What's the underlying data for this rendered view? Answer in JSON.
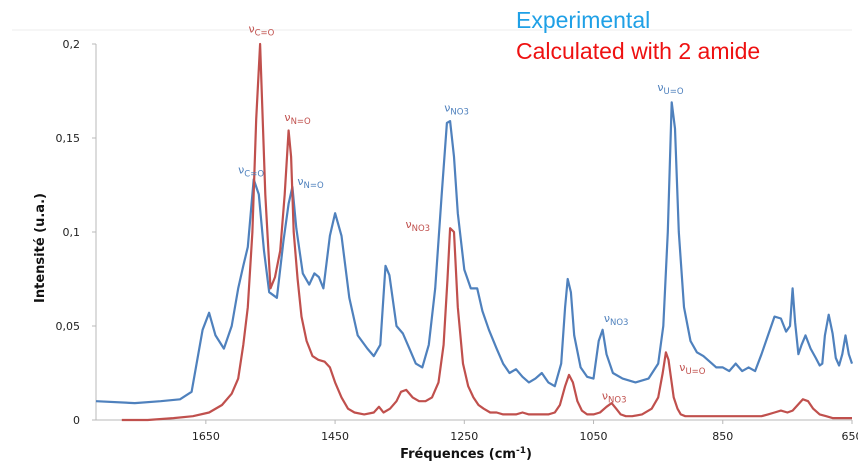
{
  "chart_data": {
    "type": "line",
    "title": "",
    "xlabel_main": "Fréquences (cm",
    "xlabel_sup": "-1",
    "xlabel_end": ")",
    "ylabel": "Intensité (u.a.)",
    "x_reversed": true,
    "xlim": [
      1820,
      650
    ],
    "ylim": [
      0,
      0.2
    ],
    "grid": false,
    "legend_position": "top-right",
    "x_ticks": [
      1650,
      1450,
      1250,
      1050,
      850,
      650
    ],
    "x_tick_labels": [
      "1650",
      "1450",
      "1250",
      "1050",
      "850",
      "650"
    ],
    "y_ticks": [
      0,
      0.05,
      0.1,
      0.15,
      0.2
    ],
    "y_tick_labels": [
      "0",
      "0,05",
      "0,1",
      "0,15",
      "0,2"
    ],
    "series": [
      {
        "name": "Experimental",
        "color": "#4f81bd",
        "x": [
          1820,
          1760,
          1720,
          1690,
          1672,
          1655,
          1645,
          1635,
          1622,
          1610,
          1600,
          1592,
          1585,
          1576,
          1568,
          1560,
          1552,
          1540,
          1530,
          1522,
          1516,
          1510,
          1500,
          1490,
          1482,
          1475,
          1468,
          1458,
          1450,
          1440,
          1428,
          1415,
          1400,
          1390,
          1380,
          1372,
          1366,
          1355,
          1345,
          1335,
          1325,
          1315,
          1305,
          1295,
          1285,
          1277,
          1272,
          1266,
          1260,
          1250,
          1240,
          1230,
          1222,
          1212,
          1200,
          1190,
          1180,
          1170,
          1160,
          1150,
          1140,
          1130,
          1120,
          1110,
          1100,
          1094,
          1090,
          1085,
          1080,
          1070,
          1060,
          1050,
          1042,
          1036,
          1030,
          1020,
          1005,
          985,
          965,
          950,
          942,
          935,
          929,
          924,
          918,
          910,
          900,
          890,
          880,
          870,
          860,
          850,
          840,
          830,
          820,
          810,
          800,
          790,
          780,
          770,
          760,
          752,
          746,
          742,
          738,
          733,
          728,
          722,
          714,
          706,
          700,
          696,
          692,
          686,
          680,
          675,
          670,
          665,
          660,
          655,
          650
        ],
        "y": [
          0.01,
          0.009,
          0.01,
          0.011,
          0.015,
          0.048,
          0.057,
          0.045,
          0.038,
          0.05,
          0.07,
          0.082,
          0.092,
          0.128,
          0.12,
          0.09,
          0.068,
          0.065,
          0.095,
          0.115,
          0.124,
          0.102,
          0.078,
          0.072,
          0.078,
          0.076,
          0.07,
          0.098,
          0.11,
          0.098,
          0.065,
          0.045,
          0.038,
          0.034,
          0.04,
          0.082,
          0.077,
          0.05,
          0.046,
          0.038,
          0.03,
          0.028,
          0.04,
          0.07,
          0.12,
          0.158,
          0.159,
          0.14,
          0.11,
          0.08,
          0.07,
          0.07,
          0.058,
          0.048,
          0.038,
          0.03,
          0.025,
          0.027,
          0.023,
          0.02,
          0.022,
          0.025,
          0.02,
          0.018,
          0.03,
          0.06,
          0.075,
          0.068,
          0.045,
          0.028,
          0.023,
          0.022,
          0.042,
          0.048,
          0.035,
          0.025,
          0.022,
          0.02,
          0.022,
          0.03,
          0.05,
          0.1,
          0.169,
          0.155,
          0.1,
          0.06,
          0.042,
          0.036,
          0.034,
          0.031,
          0.028,
          0.028,
          0.026,
          0.03,
          0.026,
          0.028,
          0.026,
          0.035,
          0.045,
          0.055,
          0.054,
          0.047,
          0.05,
          0.07,
          0.052,
          0.035,
          0.04,
          0.045,
          0.038,
          0.033,
          0.029,
          0.03,
          0.045,
          0.056,
          0.046,
          0.033,
          0.029,
          0.035,
          0.045,
          0.035,
          0.03
        ]
      },
      {
        "name": "Calculated with 2 amide",
        "color": "#c0504d",
        "x": [
          1780,
          1740,
          1700,
          1670,
          1645,
          1625,
          1610,
          1600,
          1592,
          1585,
          1578,
          1572,
          1566,
          1558,
          1550,
          1543,
          1535,
          1528,
          1522,
          1518,
          1514,
          1508,
          1502,
          1494,
          1485,
          1476,
          1466,
          1458,
          1450,
          1440,
          1430,
          1420,
          1405,
          1390,
          1382,
          1375,
          1365,
          1355,
          1348,
          1340,
          1330,
          1320,
          1310,
          1300,
          1290,
          1282,
          1276,
          1272,
          1266,
          1260,
          1252,
          1244,
          1236,
          1228,
          1220,
          1210,
          1200,
          1190,
          1180,
          1170,
          1160,
          1150,
          1140,
          1130,
          1120,
          1110,
          1102,
          1094,
          1088,
          1082,
          1075,
          1068,
          1060,
          1050,
          1040,
          1030,
          1022,
          1015,
          1008,
          1000,
          990,
          975,
          960,
          950,
          943,
          938,
          934,
          930,
          926,
          920,
          915,
          908,
          900,
          890,
          880,
          870,
          860,
          850,
          840,
          830,
          820,
          810,
          800,
          790,
          780,
          770,
          760,
          750,
          742,
          734,
          726,
          718,
          710,
          700,
          690,
          680,
          670,
          660,
          650
        ],
        "y": [
          0,
          0,
          0.001,
          0.002,
          0.004,
          0.008,
          0.014,
          0.022,
          0.04,
          0.06,
          0.1,
          0.16,
          0.2,
          0.12,
          0.07,
          0.076,
          0.09,
          0.12,
          0.154,
          0.14,
          0.1,
          0.075,
          0.055,
          0.042,
          0.034,
          0.032,
          0.031,
          0.028,
          0.02,
          0.012,
          0.006,
          0.004,
          0.003,
          0.004,
          0.007,
          0.004,
          0.006,
          0.01,
          0.015,
          0.016,
          0.012,
          0.01,
          0.01,
          0.012,
          0.02,
          0.04,
          0.075,
          0.102,
          0.1,
          0.06,
          0.03,
          0.018,
          0.012,
          0.008,
          0.006,
          0.004,
          0.004,
          0.003,
          0.003,
          0.003,
          0.004,
          0.003,
          0.003,
          0.003,
          0.003,
          0.004,
          0.008,
          0.018,
          0.024,
          0.02,
          0.01,
          0.005,
          0.003,
          0.003,
          0.004,
          0.007,
          0.009,
          0.006,
          0.003,
          0.002,
          0.002,
          0.003,
          0.006,
          0.012,
          0.025,
          0.036,
          0.032,
          0.022,
          0.012,
          0.006,
          0.003,
          0.002,
          0.002,
          0.002,
          0.002,
          0.002,
          0.002,
          0.002,
          0.002,
          0.002,
          0.002,
          0.002,
          0.002,
          0.002,
          0.003,
          0.004,
          0.005,
          0.004,
          0.005,
          0.008,
          0.011,
          0.01,
          0.006,
          0.003,
          0.002,
          0.001,
          0.001,
          0.001,
          0.001
        ]
      }
    ],
    "annotations": [
      {
        "base": "ν",
        "sub": "C=O",
        "x": 1580,
        "y": 0.131,
        "color": "#4f81bd"
      },
      {
        "base": "ν",
        "sub": "N=O",
        "x": 1488,
        "y": 0.125,
        "color": "#4f81bd"
      },
      {
        "base": "ν",
        "sub": "NO3",
        "x": 1262,
        "y": 0.164,
        "color": "#4f81bd"
      },
      {
        "base": "ν",
        "sub": "U=O",
        "x": 931,
        "y": 0.175,
        "color": "#4f81bd"
      },
      {
        "base": "ν",
        "sub": "NO3",
        "x": 1015,
        "y": 0.052,
        "color": "#4f81bd"
      },
      {
        "base": "ν",
        "sub": "C=O",
        "x": 1564,
        "y": 0.206,
        "color": "#c0504d"
      },
      {
        "base": "ν",
        "sub": "N=O",
        "x": 1508,
        "y": 0.159,
        "color": "#c0504d"
      },
      {
        "base": "ν",
        "sub": "NO3",
        "x": 1322,
        "y": 0.102,
        "color": "#c0504d"
      },
      {
        "base": "ν",
        "sub": "NO3",
        "x": 1018,
        "y": 0.011,
        "color": "#c0504d"
      },
      {
        "base": "ν",
        "sub": "U=O",
        "x": 897,
        "y": 0.026,
        "color": "#c0504d"
      }
    ]
  }
}
